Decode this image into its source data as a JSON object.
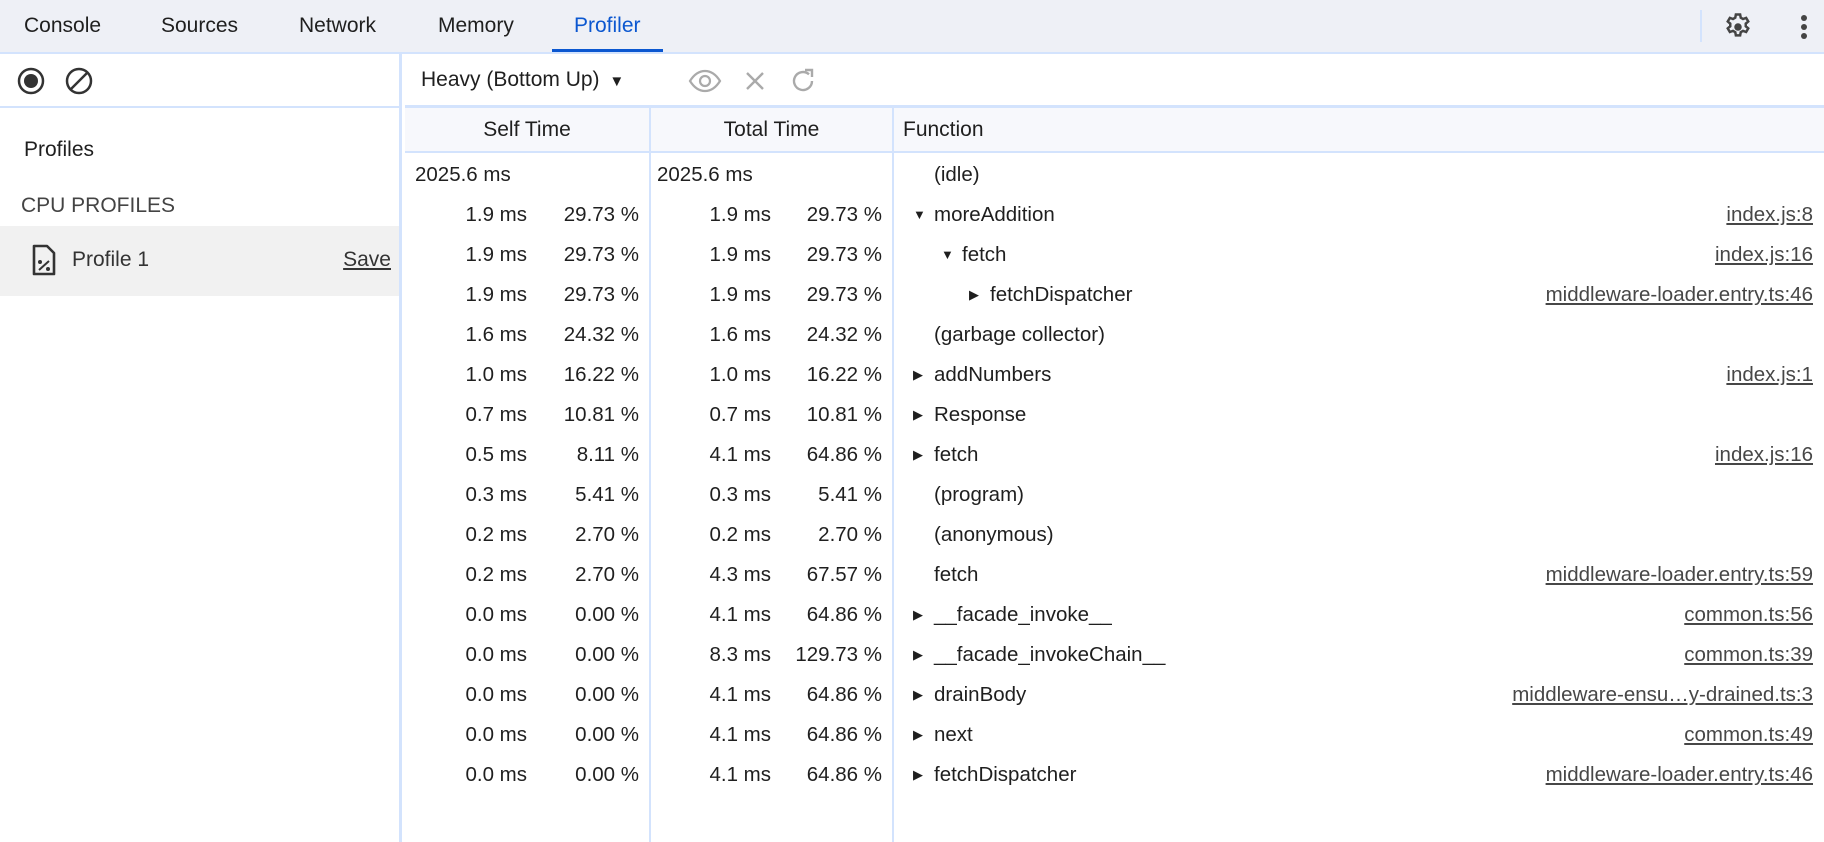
{
  "tabs": [
    {
      "label": "Console"
    },
    {
      "label": "Sources"
    },
    {
      "label": "Network"
    },
    {
      "label": "Memory"
    },
    {
      "label": "Profiler",
      "active": true
    }
  ],
  "accent": "#0b57d0",
  "sidebar": {
    "title": "Profiles",
    "section": "CPU PROFILES",
    "profile": {
      "name": "Profile 1",
      "save_label": "Save"
    }
  },
  "toolbar": {
    "view_mode": "Heavy (Bottom Up)"
  },
  "table": {
    "headers": {
      "self": "Self Time",
      "total": "Total Time",
      "function": "Function"
    },
    "rows": [
      {
        "self_ms": "2025.6 ms",
        "self_pct": "",
        "total_ms": "2025.6 ms",
        "total_pct": "",
        "fn": "(idle)",
        "depth": 0,
        "arrow": "none",
        "url": ""
      },
      {
        "self_ms": "1.9 ms",
        "self_pct": "29.73 %",
        "total_ms": "1.9 ms",
        "total_pct": "29.73 %",
        "fn": "moreAddition",
        "depth": 0,
        "arrow": "expanded",
        "url": "index.js:8"
      },
      {
        "self_ms": "1.9 ms",
        "self_pct": "29.73 %",
        "total_ms": "1.9 ms",
        "total_pct": "29.73 %",
        "fn": "fetch",
        "depth": 1,
        "arrow": "expanded",
        "url": "index.js:16"
      },
      {
        "self_ms": "1.9 ms",
        "self_pct": "29.73 %",
        "total_ms": "1.9 ms",
        "total_pct": "29.73 %",
        "fn": "fetchDispatcher",
        "depth": 2,
        "arrow": "collapsed",
        "url": "middleware-loader.entry.ts:46"
      },
      {
        "self_ms": "1.6 ms",
        "self_pct": "24.32 %",
        "total_ms": "1.6 ms",
        "total_pct": "24.32 %",
        "fn": "(garbage collector)",
        "depth": 0,
        "arrow": "none",
        "url": ""
      },
      {
        "self_ms": "1.0 ms",
        "self_pct": "16.22 %",
        "total_ms": "1.0 ms",
        "total_pct": "16.22 %",
        "fn": "addNumbers",
        "depth": 0,
        "arrow": "collapsed",
        "url": "index.js:1"
      },
      {
        "self_ms": "0.7 ms",
        "self_pct": "10.81 %",
        "total_ms": "0.7 ms",
        "total_pct": "10.81 %",
        "fn": "Response",
        "depth": 0,
        "arrow": "collapsed",
        "url": ""
      },
      {
        "self_ms": "0.5 ms",
        "self_pct": "8.11 %",
        "total_ms": "4.1 ms",
        "total_pct": "64.86 %",
        "fn": "fetch",
        "depth": 0,
        "arrow": "collapsed",
        "url": "index.js:16"
      },
      {
        "self_ms": "0.3 ms",
        "self_pct": "5.41 %",
        "total_ms": "0.3 ms",
        "total_pct": "5.41 %",
        "fn": "(program)",
        "depth": 0,
        "arrow": "none",
        "url": ""
      },
      {
        "self_ms": "0.2 ms",
        "self_pct": "2.70 %",
        "total_ms": "0.2 ms",
        "total_pct": "2.70 %",
        "fn": "(anonymous)",
        "depth": 0,
        "arrow": "none",
        "url": ""
      },
      {
        "self_ms": "0.2 ms",
        "self_pct": "2.70 %",
        "total_ms": "4.3 ms",
        "total_pct": "67.57 %",
        "fn": "fetch",
        "depth": 0,
        "arrow": "none",
        "url": "middleware-loader.entry.ts:59"
      },
      {
        "self_ms": "0.0 ms",
        "self_pct": "0.00 %",
        "total_ms": "4.1 ms",
        "total_pct": "64.86 %",
        "fn": "__facade_invoke__",
        "depth": 0,
        "arrow": "collapsed",
        "url": "common.ts:56"
      },
      {
        "self_ms": "0.0 ms",
        "self_pct": "0.00 %",
        "total_ms": "8.3 ms",
        "total_pct": "129.73 %",
        "fn": "__facade_invokeChain__",
        "depth": 0,
        "arrow": "collapsed",
        "url": "common.ts:39"
      },
      {
        "self_ms": "0.0 ms",
        "self_pct": "0.00 %",
        "total_ms": "4.1 ms",
        "total_pct": "64.86 %",
        "fn": "drainBody",
        "depth": 0,
        "arrow": "collapsed",
        "url": "middleware-ensu…y-drained.ts:3"
      },
      {
        "self_ms": "0.0 ms",
        "self_pct": "0.00 %",
        "total_ms": "4.1 ms",
        "total_pct": "64.86 %",
        "fn": "next",
        "depth": 0,
        "arrow": "collapsed",
        "url": "common.ts:49"
      },
      {
        "self_ms": "0.0 ms",
        "self_pct": "0.00 %",
        "total_ms": "4.1 ms",
        "total_pct": "64.86 %",
        "fn": "fetchDispatcher",
        "depth": 0,
        "arrow": "collapsed",
        "url": "middleware-loader.entry.ts:46"
      }
    ]
  }
}
